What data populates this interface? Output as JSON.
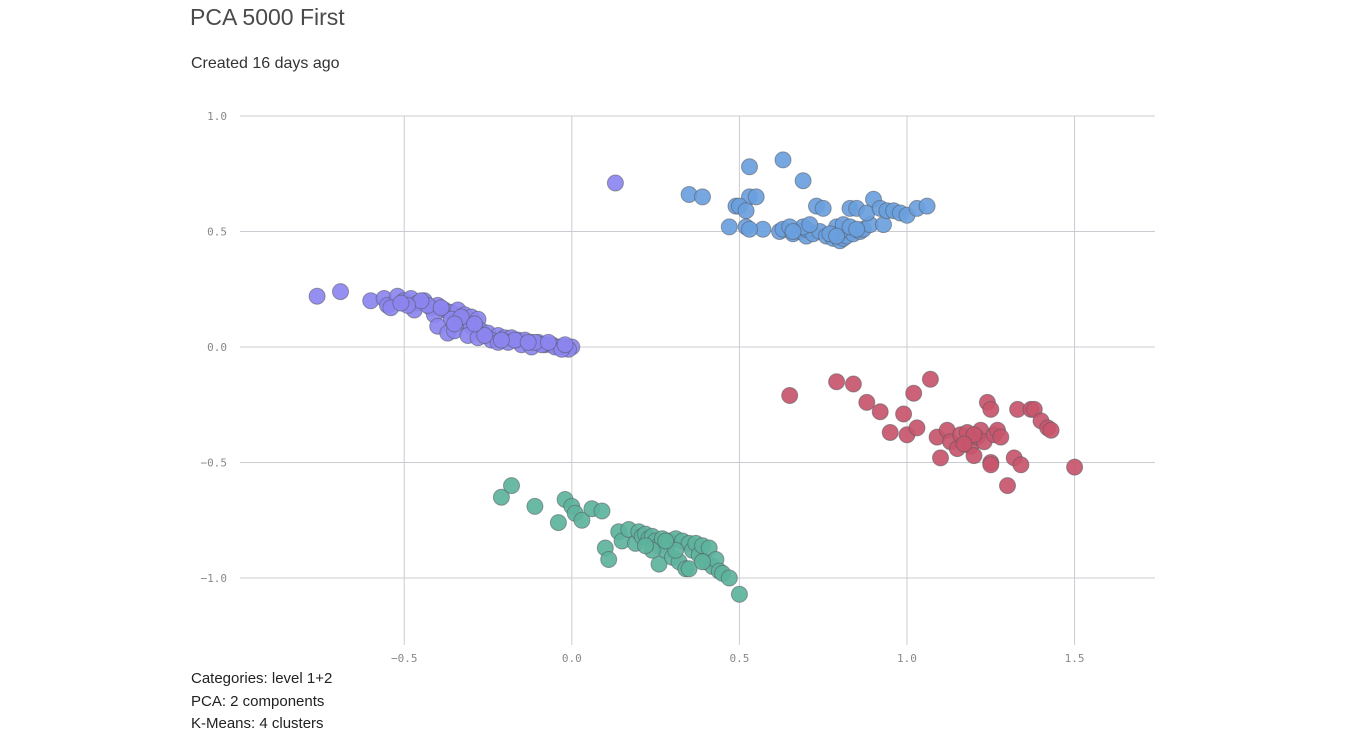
{
  "page": {
    "title": "PCA 5000 First",
    "created": "Created 16 days ago"
  },
  "footer": {
    "categories": "Categories: level 1+2",
    "pca": "PCA: 2 components",
    "kmeans": "K-Means: 4 clusters"
  },
  "chart_data": {
    "type": "scatter",
    "title": "",
    "xlabel": "",
    "ylabel": "",
    "xlim": [
      -0.99,
      1.74
    ],
    "ylim": [
      -1.29,
      1.0
    ],
    "x_ticks": [
      -0.5,
      0.0,
      0.5,
      1.0,
      1.5
    ],
    "x_tick_labels": [
      "−0.5",
      "0.0",
      "0.5",
      "1.0",
      "1.5"
    ],
    "y_ticks": [
      1.0,
      0.5,
      0.0,
      -0.5,
      -1.0
    ],
    "y_tick_labels": [
      "1.0",
      "0.5",
      "0.0",
      "−0.5",
      "−1.0"
    ],
    "grid": true,
    "legend": "none",
    "series": [
      {
        "color": "#8c86f0",
        "points": [
          [
            0.13,
            0.71
          ],
          [
            -0.76,
            0.22
          ],
          [
            -0.69,
            0.24
          ],
          [
            -0.6,
            0.2
          ],
          [
            -0.56,
            0.21
          ],
          [
            -0.55,
            0.18
          ],
          [
            -0.52,
            0.22
          ],
          [
            -0.5,
            0.2
          ],
          [
            -0.48,
            0.21
          ],
          [
            -0.46,
            0.19
          ],
          [
            -0.44,
            0.2
          ],
          [
            -0.42,
            0.17
          ],
          [
            -0.4,
            0.18
          ],
          [
            -0.38,
            0.16
          ],
          [
            -0.36,
            0.15
          ],
          [
            -0.34,
            0.16
          ],
          [
            -0.32,
            0.14
          ],
          [
            -0.3,
            0.13
          ],
          [
            -0.28,
            0.12
          ],
          [
            -0.54,
            0.17
          ],
          [
            -0.47,
            0.16
          ],
          [
            -0.41,
            0.14
          ],
          [
            -0.36,
            0.12
          ],
          [
            -0.33,
            0.11
          ],
          [
            -0.3,
            0.09
          ],
          [
            -0.27,
            0.07
          ],
          [
            -0.25,
            0.06
          ],
          [
            -0.22,
            0.05
          ],
          [
            -0.2,
            0.04
          ],
          [
            -0.18,
            0.04
          ],
          [
            -0.16,
            0.03
          ],
          [
            -0.14,
            0.03
          ],
          [
            -0.12,
            0.02
          ],
          [
            -0.1,
            0.02
          ],
          [
            -0.08,
            0.01
          ],
          [
            -0.06,
            0.01
          ],
          [
            -0.04,
            0.0
          ],
          [
            -0.02,
            0.0
          ],
          [
            0.0,
            0.0
          ],
          [
            -0.01,
            -0.01
          ],
          [
            -0.4,
            0.09
          ],
          [
            -0.37,
            0.06
          ],
          [
            -0.35,
            0.07
          ],
          [
            -0.31,
            0.05
          ],
          [
            -0.28,
            0.04
          ],
          [
            -0.24,
            0.03
          ],
          [
            -0.22,
            0.02
          ],
          [
            -0.19,
            0.02
          ],
          [
            -0.15,
            0.01
          ],
          [
            -0.12,
            0.0
          ],
          [
            -0.09,
            0.01
          ],
          [
            -0.05,
            0.0
          ],
          [
            -0.03,
            -0.01
          ],
          [
            -0.26,
            0.05
          ],
          [
            -0.17,
            0.03
          ],
          [
            -0.11,
            0.02
          ],
          [
            -0.07,
            0.02
          ],
          [
            -0.43,
            0.18
          ],
          [
            -0.39,
            0.17
          ],
          [
            -0.45,
            0.2
          ],
          [
            -0.49,
            0.18
          ],
          [
            -0.51,
            0.19
          ],
          [
            -0.33,
            0.13
          ],
          [
            -0.29,
            0.1
          ],
          [
            -0.35,
            0.1
          ],
          [
            -0.21,
            0.03
          ],
          [
            -0.13,
            0.02
          ],
          [
            -0.02,
            0.01
          ]
        ]
      },
      {
        "color": "#6a9fde",
        "points": [
          [
            0.53,
            0.78
          ],
          [
            0.63,
            0.81
          ],
          [
            0.69,
            0.72
          ],
          [
            0.35,
            0.66
          ],
          [
            0.39,
            0.65
          ],
          [
            0.53,
            0.65
          ],
          [
            0.55,
            0.65
          ],
          [
            0.49,
            0.61
          ],
          [
            0.5,
            0.61
          ],
          [
            0.52,
            0.59
          ],
          [
            0.47,
            0.52
          ],
          [
            0.52,
            0.52
          ],
          [
            0.57,
            0.51
          ],
          [
            0.62,
            0.5
          ],
          [
            0.63,
            0.51
          ],
          [
            0.66,
            0.49
          ],
          [
            0.68,
            0.5
          ],
          [
            0.7,
            0.48
          ],
          [
            0.7,
            0.51
          ],
          [
            0.72,
            0.49
          ],
          [
            0.74,
            0.5
          ],
          [
            0.76,
            0.48
          ],
          [
            0.78,
            0.47
          ],
          [
            0.8,
            0.46
          ],
          [
            0.81,
            0.47
          ],
          [
            0.82,
            0.48
          ],
          [
            0.84,
            0.49
          ],
          [
            0.86,
            0.5
          ],
          [
            0.8,
            0.5
          ],
          [
            0.79,
            0.52
          ],
          [
            0.81,
            0.53
          ],
          [
            0.83,
            0.52
          ],
          [
            0.87,
            0.51
          ],
          [
            0.89,
            0.53
          ],
          [
            0.93,
            0.53
          ],
          [
            0.73,
            0.61
          ],
          [
            0.75,
            0.6
          ],
          [
            0.83,
            0.6
          ],
          [
            0.85,
            0.6
          ],
          [
            0.88,
            0.58
          ],
          [
            0.9,
            0.64
          ],
          [
            0.92,
            0.6
          ],
          [
            0.94,
            0.59
          ],
          [
            0.96,
            0.59
          ],
          [
            0.98,
            0.58
          ],
          [
            1.0,
            0.57
          ],
          [
            1.03,
            0.6
          ],
          [
            1.06,
            0.61
          ],
          [
            0.69,
            0.52
          ],
          [
            0.71,
            0.53
          ],
          [
            0.77,
            0.49
          ],
          [
            0.79,
            0.48
          ],
          [
            0.85,
            0.51
          ],
          [
            0.65,
            0.52
          ],
          [
            0.53,
            0.51
          ],
          [
            0.66,
            0.5
          ]
        ]
      },
      {
        "color": "#c8556b",
        "points": [
          [
            0.65,
            -0.21
          ],
          [
            0.79,
            -0.15
          ],
          [
            0.84,
            -0.16
          ],
          [
            0.88,
            -0.24
          ],
          [
            0.92,
            -0.28
          ],
          [
            0.95,
            -0.37
          ],
          [
            0.99,
            -0.29
          ],
          [
            1.0,
            -0.38
          ],
          [
            1.02,
            -0.2
          ],
          [
            1.03,
            -0.35
          ],
          [
            1.07,
            -0.14
          ],
          [
            1.09,
            -0.39
          ],
          [
            1.1,
            -0.48
          ],
          [
            1.12,
            -0.36
          ],
          [
            1.13,
            -0.41
          ],
          [
            1.15,
            -0.44
          ],
          [
            1.16,
            -0.38
          ],
          [
            1.18,
            -0.37
          ],
          [
            1.19,
            -0.43
          ],
          [
            1.2,
            -0.47
          ],
          [
            1.21,
            -0.39
          ],
          [
            1.22,
            -0.36
          ],
          [
            1.23,
            -0.41
          ],
          [
            1.24,
            -0.24
          ],
          [
            1.25,
            -0.27
          ],
          [
            1.25,
            -0.5
          ],
          [
            1.26,
            -0.38
          ],
          [
            1.27,
            -0.36
          ],
          [
            1.28,
            -0.39
          ],
          [
            1.3,
            -0.6
          ],
          [
            1.32,
            -0.48
          ],
          [
            1.33,
            -0.27
          ],
          [
            1.34,
            -0.51
          ],
          [
            1.37,
            -0.27
          ],
          [
            1.38,
            -0.27
          ],
          [
            1.4,
            -0.32
          ],
          [
            1.42,
            -0.35
          ],
          [
            1.43,
            -0.36
          ],
          [
            1.5,
            -0.52
          ],
          [
            1.2,
            -0.38
          ],
          [
            1.17,
            -0.42
          ],
          [
            1.25,
            -0.51
          ]
        ]
      },
      {
        "color": "#5db39c",
        "points": [
          [
            -0.21,
            -0.65
          ],
          [
            -0.18,
            -0.6
          ],
          [
            -0.11,
            -0.69
          ],
          [
            -0.04,
            -0.76
          ],
          [
            -0.02,
            -0.66
          ],
          [
            0.0,
            -0.69
          ],
          [
            0.01,
            -0.72
          ],
          [
            0.03,
            -0.75
          ],
          [
            0.06,
            -0.7
          ],
          [
            0.09,
            -0.71
          ],
          [
            0.1,
            -0.87
          ],
          [
            0.11,
            -0.92
          ],
          [
            0.14,
            -0.8
          ],
          [
            0.15,
            -0.84
          ],
          [
            0.17,
            -0.79
          ],
          [
            0.19,
            -0.85
          ],
          [
            0.2,
            -0.8
          ],
          [
            0.21,
            -0.82
          ],
          [
            0.22,
            -0.81
          ],
          [
            0.23,
            -0.83
          ],
          [
            0.24,
            -0.82
          ],
          [
            0.25,
            -0.84
          ],
          [
            0.26,
            -0.86
          ],
          [
            0.26,
            -0.94
          ],
          [
            0.27,
            -0.83
          ],
          [
            0.28,
            -0.88
          ],
          [
            0.29,
            -0.84
          ],
          [
            0.3,
            -0.91
          ],
          [
            0.31,
            -0.83
          ],
          [
            0.32,
            -0.93
          ],
          [
            0.33,
            -0.84
          ],
          [
            0.34,
            -0.96
          ],
          [
            0.35,
            -0.85
          ],
          [
            0.36,
            -0.88
          ],
          [
            0.37,
            -0.85
          ],
          [
            0.38,
            -0.9
          ],
          [
            0.39,
            -0.86
          ],
          [
            0.4,
            -0.93
          ],
          [
            0.41,
            -0.87
          ],
          [
            0.42,
            -0.95
          ],
          [
            0.43,
            -0.92
          ],
          [
            0.44,
            -0.97
          ],
          [
            0.45,
            -0.98
          ],
          [
            0.47,
            -1.0
          ],
          [
            0.5,
            -1.07
          ],
          [
            0.35,
            -0.96
          ],
          [
            0.31,
            -0.88
          ],
          [
            0.24,
            -0.88
          ],
          [
            0.22,
            -0.86
          ],
          [
            0.28,
            -0.84
          ],
          [
            0.39,
            -0.93
          ]
        ]
      }
    ]
  }
}
